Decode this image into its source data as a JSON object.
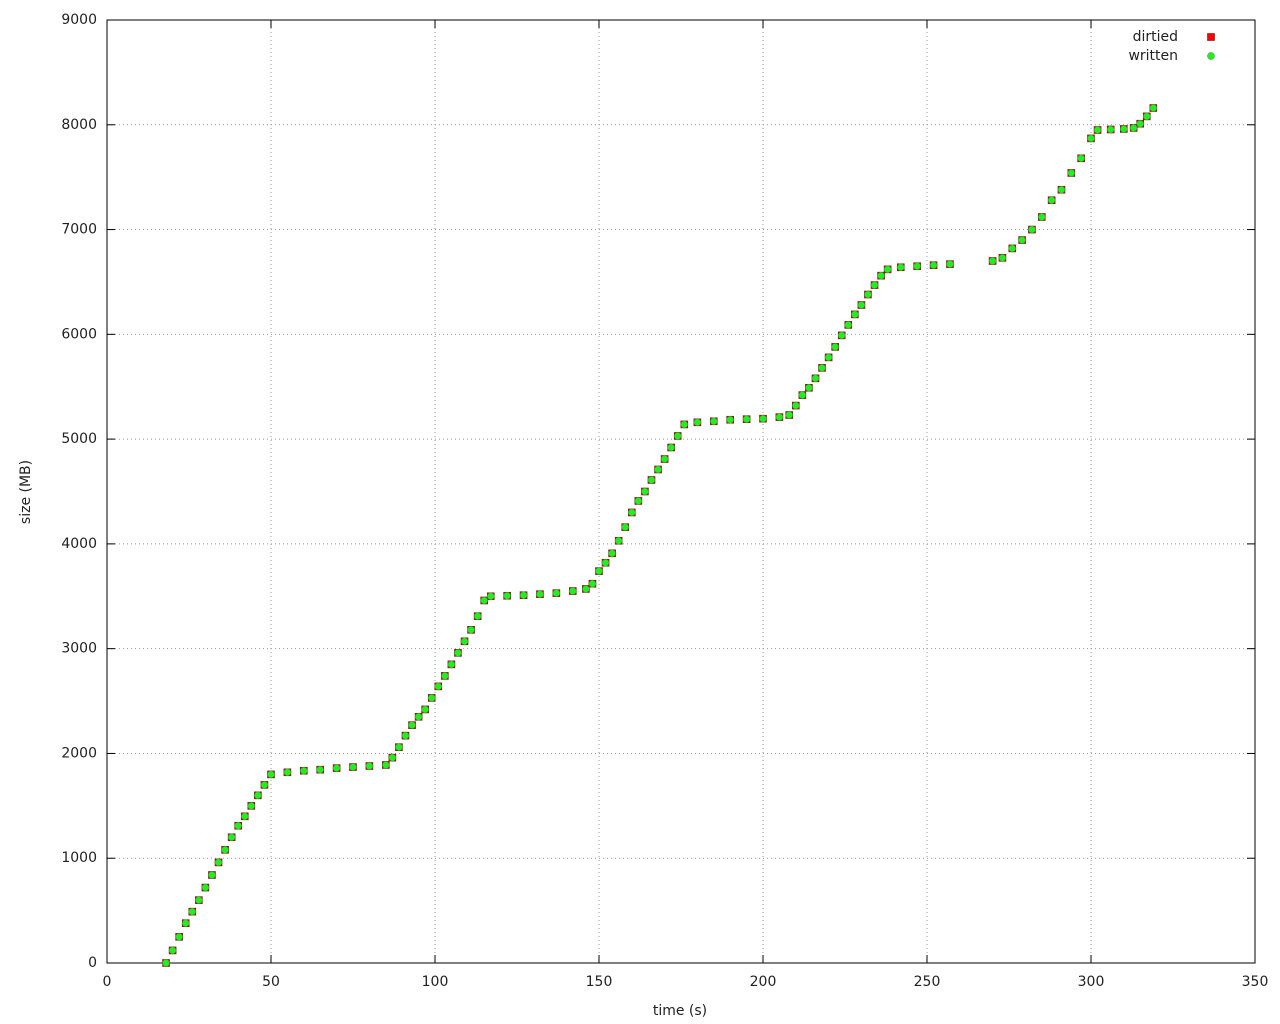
{
  "chart_data": {
    "type": "scatter",
    "xlabel": "time (s)",
    "ylabel": "size (MB)",
    "xlim": [
      0,
      350
    ],
    "xticks": [
      0,
      50,
      100,
      150,
      200,
      250,
      300,
      350
    ],
    "ylim": [
      0,
      9000
    ],
    "yticks": [
      0,
      1000,
      2000,
      3000,
      4000,
      5000,
      6000,
      7000,
      8000,
      9000
    ],
    "grid": true,
    "legend": "top-right",
    "x": [
      18,
      20,
      22,
      24,
      26,
      28,
      30,
      32,
      34,
      36,
      38,
      40,
      42,
      44,
      46,
      48,
      50,
      55,
      60,
      65,
      70,
      75,
      80,
      85,
      87,
      89,
      91,
      93,
      95,
      97,
      99,
      101,
      103,
      105,
      107,
      109,
      111,
      113,
      115,
      117,
      122,
      127,
      132,
      137,
      142,
      146,
      148,
      150,
      152,
      154,
      156,
      158,
      160,
      162,
      164,
      166,
      168,
      170,
      172,
      174,
      176,
      180,
      185,
      190,
      195,
      200,
      205,
      208,
      210,
      212,
      214,
      216,
      218,
      220,
      222,
      224,
      226,
      228,
      230,
      232,
      234,
      236,
      238,
      242,
      247,
      252,
      257,
      270,
      273,
      276,
      279,
      282,
      285,
      288,
      291,
      294,
      297,
      300,
      302,
      306,
      310,
      313,
      315,
      317,
      319
    ],
    "series": [
      {
        "name": "dirtied",
        "color": "#ff0000",
        "marker": "square",
        "values": [
          0,
          120,
          250,
          380,
          490,
          600,
          720,
          840,
          960,
          1080,
          1200,
          1310,
          1400,
          1500,
          1600,
          1700,
          1800,
          1820,
          1835,
          1845,
          1860,
          1870,
          1880,
          1890,
          1960,
          2060,
          2170,
          2270,
          2350,
          2420,
          2530,
          2640,
          2740,
          2850,
          2960,
          3070,
          3180,
          3310,
          3460,
          3500,
          3505,
          3510,
          3520,
          3530,
          3550,
          3570,
          3620,
          3740,
          3820,
          3910,
          4030,
          4160,
          4300,
          4410,
          4500,
          4610,
          4710,
          4810,
          4920,
          5030,
          5140,
          5160,
          5170,
          5185,
          5190,
          5195,
          5210,
          5230,
          5320,
          5420,
          5490,
          5580,
          5680,
          5780,
          5880,
          5990,
          6090,
          6190,
          6280,
          6380,
          6470,
          6560,
          6620,
          6640,
          6650,
          6660,
          6670,
          6700,
          6730,
          6820,
          6900,
          7000,
          7120,
          7280,
          7380,
          7540,
          7680,
          7870,
          7950,
          7955,
          7960,
          7970,
          8010,
          8080,
          8160
        ]
      },
      {
        "name": "written",
        "color": "#22ee22",
        "marker": "circle",
        "values": [
          0,
          120,
          250,
          380,
          490,
          600,
          720,
          840,
          960,
          1080,
          1200,
          1310,
          1400,
          1500,
          1600,
          1700,
          1800,
          1820,
          1835,
          1845,
          1860,
          1870,
          1880,
          1890,
          1960,
          2060,
          2170,
          2270,
          2350,
          2420,
          2530,
          2640,
          2740,
          2850,
          2960,
          3070,
          3180,
          3310,
          3460,
          3500,
          3505,
          3510,
          3520,
          3530,
          3550,
          3570,
          3620,
          3740,
          3820,
          3910,
          4030,
          4160,
          4300,
          4410,
          4500,
          4610,
          4710,
          4810,
          4920,
          5030,
          5140,
          5160,
          5170,
          5185,
          5190,
          5195,
          5210,
          5230,
          5320,
          5420,
          5490,
          5580,
          5680,
          5780,
          5880,
          5990,
          6090,
          6190,
          6280,
          6380,
          6470,
          6560,
          6620,
          6640,
          6650,
          6660,
          6670,
          6700,
          6730,
          6820,
          6900,
          7000,
          7120,
          7280,
          7380,
          7540,
          7680,
          7870,
          7950,
          7955,
          7960,
          7970,
          8010,
          8080,
          8160
        ]
      }
    ]
  }
}
